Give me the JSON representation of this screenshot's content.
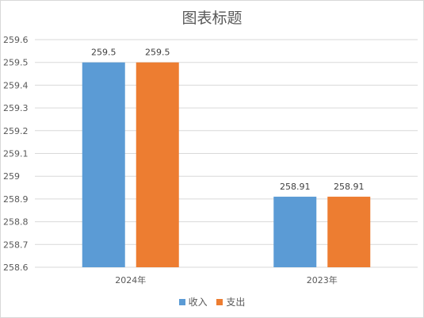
{
  "chart_data": {
    "type": "bar",
    "title": "图表标题",
    "categories": [
      "2024年",
      "2023年"
    ],
    "series": [
      {
        "name": "收入",
        "values": [
          259.5,
          258.91
        ],
        "color": "#5b9bd5"
      },
      {
        "name": "支出",
        "values": [
          259.5,
          258.91
        ],
        "color": "#ed7d31"
      }
    ],
    "ylim": [
      258.6,
      259.6
    ],
    "yticks": [
      "258.6",
      "258.7",
      "258.8",
      "258.9",
      "259",
      "259.1",
      "259.2",
      "259.3",
      "259.4",
      "259.5",
      "259.6"
    ],
    "data_labels": [
      [
        "259.5",
        "258.91"
      ],
      [
        "259.5",
        "258.91"
      ]
    ],
    "grid": true,
    "legend_position": "bottom"
  }
}
